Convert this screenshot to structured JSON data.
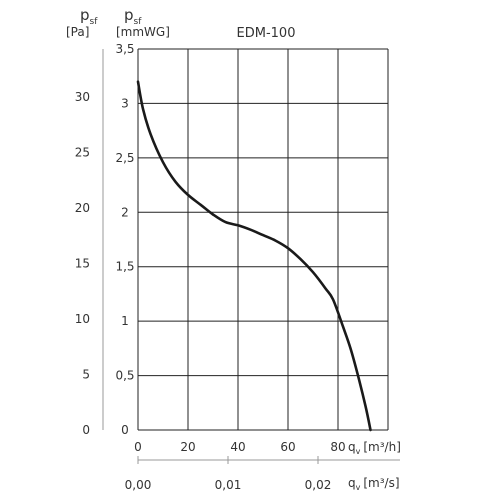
{
  "chart_data": {
    "type": "line",
    "title": "EDM-100",
    "y_axes": [
      {
        "name": "p",
        "sub": "sf",
        "unit": "[Pa]",
        "ticks": [
          "0",
          "5",
          "10",
          "15",
          "20",
          "25",
          "30"
        ],
        "range": [
          0,
          34.3
        ]
      },
      {
        "name": "p",
        "sub": "sf",
        "unit": "[mmWG]",
        "ticks": [
          "0",
          "0,5",
          "1",
          "1,5",
          "2",
          "2,5",
          "3",
          "3,5"
        ],
        "range": [
          0,
          3.5
        ]
      }
    ],
    "x_axes": [
      {
        "name": "q",
        "sub": "v",
        "unit": "[m³/h]",
        "ticks": [
          "0",
          "20",
          "40",
          "60",
          "80"
        ],
        "range": [
          0,
          100
        ]
      },
      {
        "name": "q",
        "sub": "v",
        "unit": "[m³/s]",
        "ticks": [
          "0,00",
          "0,01",
          "0,02"
        ],
        "range": [
          0,
          0.02778
        ]
      }
    ],
    "grid": true,
    "series": [
      {
        "x_unit": "m³/h",
        "y_unit": "mmWG",
        "points": [
          [
            0,
            3.2
          ],
          [
            2,
            2.95
          ],
          [
            5,
            2.72
          ],
          [
            10,
            2.46
          ],
          [
            15,
            2.28
          ],
          [
            20,
            2.16
          ],
          [
            25,
            2.07
          ],
          [
            30,
            1.98
          ],
          [
            35,
            1.91
          ],
          [
            40,
            1.88
          ],
          [
            45,
            1.84
          ],
          [
            50,
            1.79
          ],
          [
            55,
            1.74
          ],
          [
            60,
            1.67
          ],
          [
            65,
            1.57
          ],
          [
            70,
            1.45
          ],
          [
            75,
            1.3
          ],
          [
            78,
            1.2
          ],
          [
            82,
            0.95
          ],
          [
            85,
            0.75
          ],
          [
            88,
            0.5
          ],
          [
            91,
            0.22
          ],
          [
            93,
            0.0
          ]
        ]
      }
    ]
  }
}
